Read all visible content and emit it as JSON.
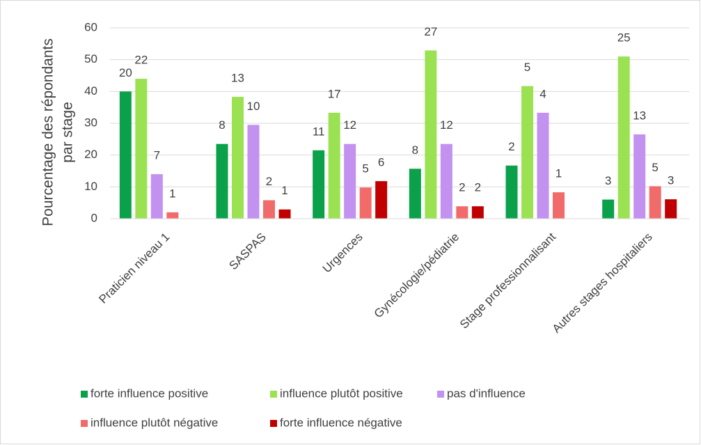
{
  "chart_data": {
    "type": "bar",
    "ylabel": [
      "Pourcentage des répondants",
      "par stage"
    ],
    "categories": [
      "Praticien niveau 1",
      "SASPAS",
      "Urgences",
      "Gynécologie/pédiatrie",
      "Stage professionnalisant",
      "Autres stages hospitaliers"
    ],
    "series": [
      {
        "name": "forte influence positive",
        "color": "#0aa14a",
        "values": [
          40,
          23.5,
          21.5,
          15.7,
          16.7,
          6
        ],
        "counts": [
          20,
          8,
          11,
          8,
          2,
          3
        ]
      },
      {
        "name": "influence plutôt positive",
        "color": "#9be253",
        "values": [
          44,
          38.3,
          33.3,
          52.9,
          41.7,
          51
        ],
        "counts": [
          22,
          13,
          17,
          27,
          5,
          25
        ]
      },
      {
        "name": "pas d'influence",
        "color": "#c391f0",
        "values": [
          14,
          29.5,
          23.5,
          23.5,
          33.3,
          26.5
        ],
        "counts": [
          7,
          10,
          12,
          12,
          4,
          13
        ]
      },
      {
        "name": "influence plutôt négative",
        "color": "#f26b6b",
        "values": [
          2,
          5.8,
          9.8,
          3.9,
          8.3,
          10.2
        ],
        "counts": [
          1,
          2,
          5,
          2,
          1,
          5
        ]
      },
      {
        "name": "forte influence négative",
        "color": "#c00000",
        "values": [
          null,
          2.9,
          11.8,
          3.9,
          null,
          6.1
        ],
        "counts": [
          null,
          1,
          6,
          2,
          null,
          3
        ]
      }
    ],
    "ylim": [
      0,
      60
    ],
    "yticks": [
      0,
      10,
      20,
      30,
      40,
      50,
      60
    ],
    "grid": true,
    "legend": "bottom"
  }
}
